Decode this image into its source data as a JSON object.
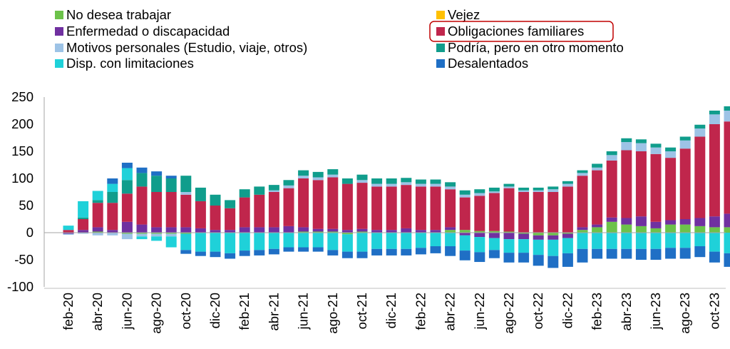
{
  "chart_data": {
    "type": "bar",
    "stacked": true,
    "title": "",
    "xlabel": "",
    "ylabel": "",
    "ylim": [
      -100,
      250
    ],
    "yticks": [
      -100,
      -50,
      0,
      50,
      100,
      150,
      200,
      250
    ],
    "x_tick_labels": [
      "feb-20",
      "abr-20",
      "jun-20",
      "ago-20",
      "oct-20",
      "dic-20",
      "feb-21",
      "abr-21",
      "jun-21",
      "ago-21",
      "oct-21",
      "dic-21",
      "feb-22",
      "abr-22",
      "jun-22",
      "ago-22",
      "oct-22",
      "dic-22",
      "feb-23",
      "abr-23",
      "jun-23",
      "ago-23",
      "oct-23"
    ],
    "categories": [
      "feb-20",
      "mar-20",
      "abr-20",
      "may-20",
      "jun-20",
      "jul-20",
      "ago-20",
      "sep-20",
      "oct-20",
      "nov-20",
      "dic-20",
      "ene-21",
      "feb-21",
      "mar-21",
      "abr-21",
      "may-21",
      "jun-21",
      "jul-21",
      "ago-21",
      "sep-21",
      "oct-21",
      "nov-21",
      "dic-21",
      "ene-22",
      "feb-22",
      "mar-22",
      "abr-22",
      "may-22",
      "jun-22",
      "jul-22",
      "ago-22",
      "sep-22",
      "oct-22",
      "nov-22",
      "dic-22",
      "ene-23",
      "feb-23",
      "mar-23",
      "abr-23",
      "may-23",
      "jun-23",
      "jul-23",
      "ago-23",
      "sep-23",
      "oct-23",
      "nov-23"
    ],
    "highlighted_legend_entry": "Obligaciones familiares",
    "series": [
      {
        "name": "No desea trabajar",
        "color": "#6cc24a",
        "values": [
          0,
          0,
          2,
          0,
          -2,
          -2,
          -2,
          -2,
          -2,
          0,
          0,
          0,
          0,
          0,
          0,
          0,
          2,
          2,
          2,
          -3,
          2,
          0,
          0,
          0,
          0,
          0,
          5,
          5,
          3,
          3,
          2,
          -2,
          -5,
          -5,
          -2,
          5,
          10,
          20,
          15,
          12,
          8,
          15,
          15,
          12,
          10,
          10
        ]
      },
      {
        "name": "Vejez",
        "color": "#ffc000",
        "values": [
          0,
          0,
          0,
          0,
          0,
          0,
          0,
          0,
          0,
          0,
          0,
          0,
          0,
          0,
          0,
          0,
          0,
          0,
          0,
          0,
          0,
          0,
          0,
          0,
          0,
          0,
          0,
          0,
          0,
          0,
          0,
          0,
          0,
          0,
          0,
          0,
          0,
          0,
          0,
          0,
          0,
          0,
          0,
          0,
          0,
          0
        ]
      },
      {
        "name": "Enfermedad o discapacidad",
        "color": "#7030a0",
        "values": [
          -2,
          5,
          8,
          5,
          20,
          15,
          10,
          10,
          10,
          8,
          5,
          5,
          10,
          10,
          10,
          12,
          8,
          5,
          5,
          5,
          5,
          5,
          5,
          8,
          5,
          5,
          5,
          -5,
          -8,
          -10,
          -12,
          -10,
          -8,
          -8,
          -8,
          5,
          5,
          8,
          12,
          18,
          12,
          8,
          10,
          15,
          20,
          25
        ]
      },
      {
        "name": "Obligaciones familiares",
        "color": "#c0264c",
        "values": [
          5,
          20,
          45,
          50,
          52,
          70,
          65,
          65,
          60,
          50,
          45,
          40,
          55,
          60,
          65,
          70,
          90,
          90,
          95,
          85,
          85,
          80,
          80,
          80,
          80,
          80,
          70,
          60,
          65,
          70,
          80,
          75,
          75,
          75,
          85,
          95,
          100,
          105,
          125,
          120,
          125,
          115,
          130,
          150,
          170,
          170
        ]
      },
      {
        "name": "Motivos personales (Estudio, viaje, otros)",
        "color": "#9dc3e6",
        "values": [
          -2,
          -2,
          -5,
          -5,
          -10,
          -5,
          -5,
          -5,
          5,
          0,
          0,
          0,
          0,
          0,
          3,
          5,
          5,
          5,
          5,
          0,
          5,
          5,
          5,
          5,
          5,
          5,
          5,
          5,
          5,
          3,
          3,
          3,
          3,
          5,
          5,
          5,
          5,
          10,
          15,
          15,
          12,
          12,
          15,
          15,
          18,
          20
        ]
      },
      {
        "name": "Podría, pero en otro momento",
        "color": "#109d8c",
        "values": [
          0,
          3,
          5,
          20,
          25,
          25,
          30,
          25,
          30,
          25,
          20,
          15,
          15,
          15,
          10,
          10,
          10,
          10,
          10,
          10,
          10,
          10,
          10,
          8,
          8,
          8,
          8,
          8,
          7,
          7,
          5,
          5,
          5,
          5,
          5,
          5,
          7,
          7,
          7,
          7,
          7,
          7,
          7,
          7,
          7,
          8
        ]
      },
      {
        "name": "Disp. con limitaciones",
        "color": "#1fd1d9",
        "values": [
          8,
          30,
          17,
          15,
          22,
          -5,
          -8,
          -20,
          -30,
          -35,
          -35,
          -38,
          -33,
          -32,
          -30,
          -27,
          -27,
          -27,
          -32,
          -32,
          -35,
          -30,
          -30,
          -30,
          -28,
          -25,
          -25,
          -28,
          -28,
          -22,
          -25,
          -25,
          -28,
          -30,
          -28,
          -30,
          -30,
          -30,
          -30,
          -30,
          -30,
          -28,
          -28,
          -25,
          -35,
          -38
        ]
      },
      {
        "name": "Desalentados",
        "color": "#1f6fc5",
        "values": [
          0,
          0,
          0,
          10,
          10,
          10,
          8,
          5,
          -7,
          -8,
          -10,
          -10,
          -10,
          -10,
          -10,
          -8,
          -8,
          -8,
          -10,
          -12,
          -12,
          -12,
          -12,
          -12,
          -12,
          -13,
          -18,
          -18,
          -18,
          -15,
          -18,
          -18,
          -20,
          -22,
          -25,
          -25,
          -18,
          -18,
          -18,
          -20,
          -20,
          -20,
          -20,
          -20,
          -20,
          -25
        ]
      }
    ],
    "legend": {
      "placement": "top",
      "left_column": [
        "No desea trabajar",
        "Enfermedad o discapacidad",
        "Motivos personales (Estudio, viaje, otros)",
        "Disp. con limitaciones"
      ],
      "right_column": [
        "Vejez",
        "Obligaciones familiares",
        "Podría, pero en otro momento",
        "Desalentados"
      ]
    }
  }
}
